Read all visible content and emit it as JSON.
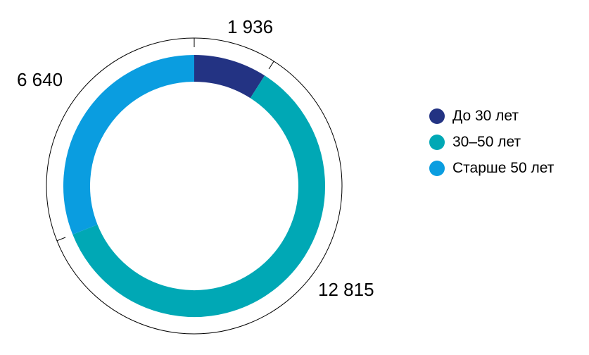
{
  "chart_data": {
    "type": "pie",
    "style": "donut",
    "categories": [
      "До 30 лет",
      "30–50 лет",
      "Старше 50 лет"
    ],
    "values": [
      1936,
      12815,
      6640
    ],
    "value_labels": [
      "1 936",
      "12 815",
      "6 640"
    ],
    "colors": [
      "#233383",
      "#00a8b5",
      "#0a9de0"
    ],
    "start_angle": "12 o'clock",
    "direction": "clockwise",
    "legend_position": "right"
  }
}
